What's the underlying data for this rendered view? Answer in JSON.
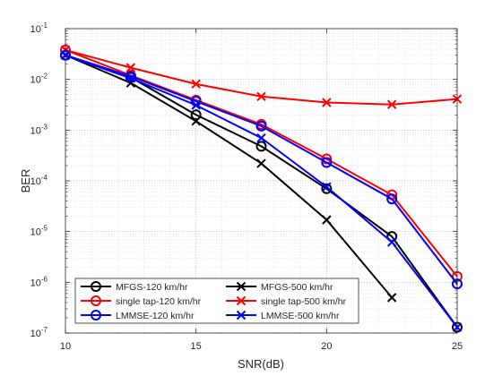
{
  "chart_data": {
    "type": "line",
    "xlabel": "SNR(dB)",
    "ylabel": "BER",
    "xlim": [
      10,
      25
    ],
    "ylim_exp": [
      -7,
      -1
    ],
    "yscale": "log",
    "grid": "on (major and minor)",
    "legend_position": "bottom-left",
    "x_ticks": [
      "10",
      "15",
      "20",
      "25"
    ],
    "y_ticks": [
      {
        "base": "10",
        "exp": "-7"
      },
      {
        "base": "10",
        "exp": "-6"
      },
      {
        "base": "10",
        "exp": "-5"
      },
      {
        "base": "10",
        "exp": "-4"
      },
      {
        "base": "10",
        "exp": "-3"
      },
      {
        "base": "10",
        "exp": "-2"
      },
      {
        "base": "10",
        "exp": "-1"
      }
    ],
    "x": [
      10,
      12.5,
      15,
      17.5,
      20,
      22.5,
      25
    ],
    "series": [
      {
        "name": "MFGS-120 km/hr",
        "color": "#000000",
        "marker": "circle",
        "values": [
          0.03,
          0.011,
          0.002,
          0.00048,
          7e-05,
          8e-06,
          1.3e-07
        ]
      },
      {
        "name": "MFGS-500 km/hr",
        "color": "#000000",
        "marker": "x",
        "values": [
          0.03,
          0.0085,
          0.0015,
          0.00022,
          1.7e-05,
          5e-07,
          null
        ]
      },
      {
        "name": "single tap-120 km/hr",
        "color": "#ff0000",
        "marker": "circle",
        "values": [
          0.038,
          0.012,
          0.0039,
          0.0013,
          0.00027,
          5.3e-05,
          1.3e-06
        ]
      },
      {
        "name": "single tap-500 km/hr",
        "color": "#ff0000",
        "marker": "x",
        "values": [
          0.038,
          0.017,
          0.0081,
          0.0046,
          0.0035,
          0.0032,
          0.0041
        ]
      },
      {
        "name": "LMMSE-120 km/hr",
        "color": "#0000ff",
        "marker": "circle",
        "values": [
          0.03,
          0.0115,
          0.0037,
          0.0012,
          0.00023,
          4.4e-05,
          9.3e-07
        ]
      },
      {
        "name": "LMMSE-500 km/hr",
        "color": "#0000ff",
        "marker": "x",
        "values": [
          0.03,
          0.0105,
          0.0031,
          0.0007,
          7.6e-05,
          6.2e-06,
          1.3e-07
        ]
      }
    ]
  }
}
